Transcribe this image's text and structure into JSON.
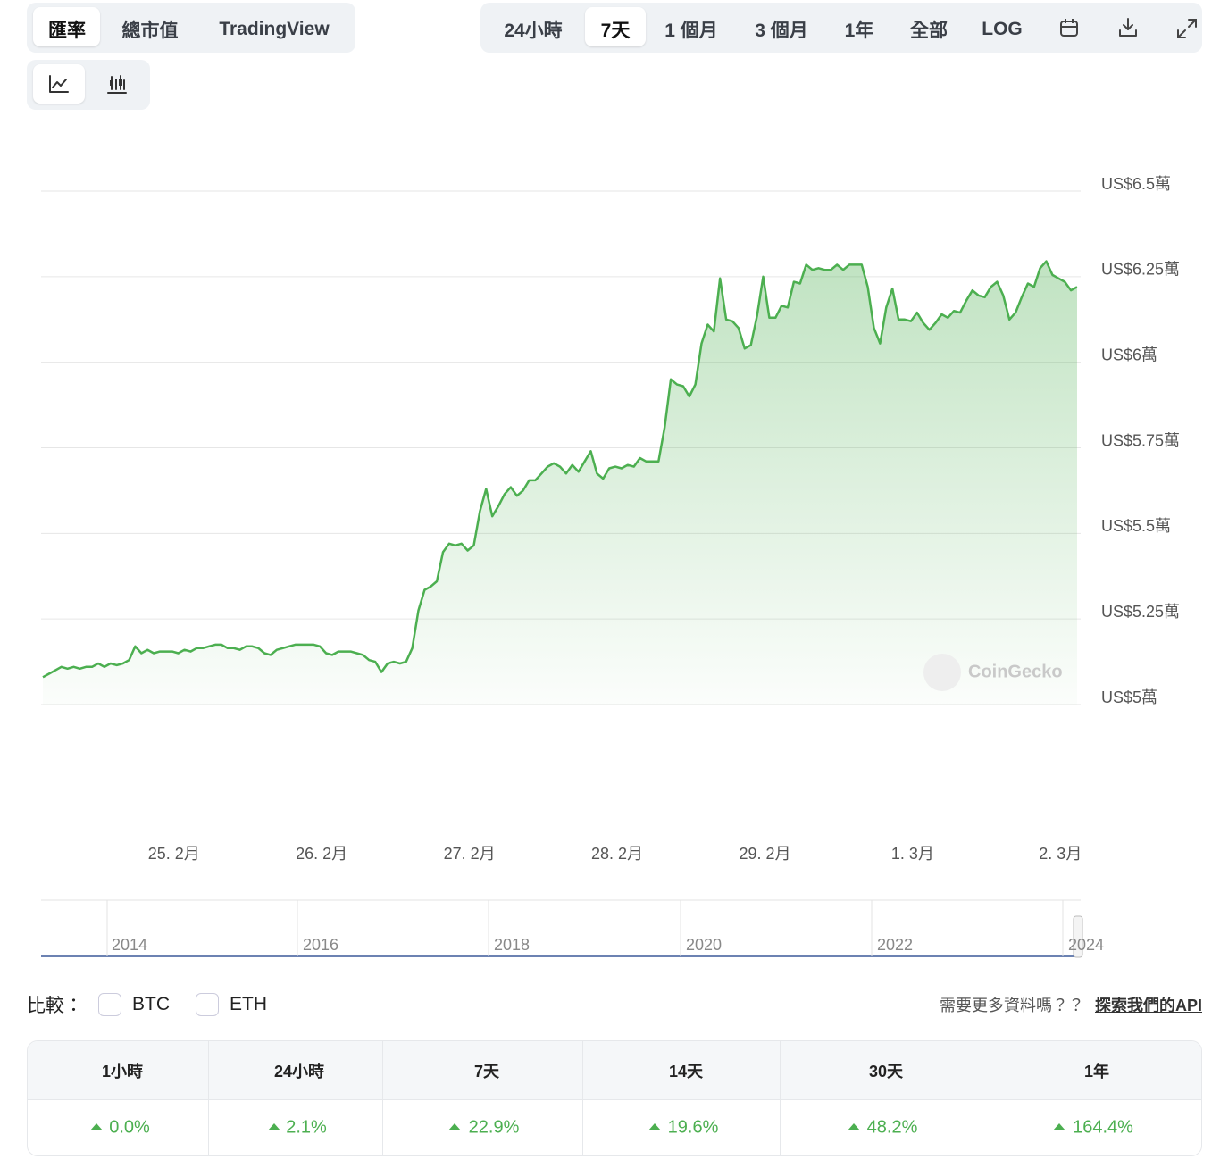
{
  "tabs": [
    "匯率",
    "總市值",
    "TradingView"
  ],
  "ranges": [
    "24小時",
    "7天",
    "1 個月",
    "3 個月",
    "1年",
    "全部",
    "LOG"
  ],
  "chart_data": {
    "type": "line",
    "watermark": "CoinGecko",
    "categories": [
      null,
      null,
      null,
      null,
      null,
      null,
      null,
      null,
      null,
      null,
      null,
      null,
      null,
      null,
      null,
      null,
      null,
      null,
      null,
      null,
      null,
      "25. 2月",
      null,
      null,
      null,
      null,
      null,
      null,
      null,
      null,
      null,
      null,
      null,
      null,
      null,
      null,
      null,
      null,
      null,
      null,
      null,
      null,
      null,
      null,
      null,
      "26. 2月",
      null,
      null,
      null,
      null,
      null,
      null,
      null,
      null,
      null,
      null,
      null,
      null,
      null,
      null,
      null,
      null,
      null,
      null,
      null,
      null,
      null,
      null,
      null,
      "27. 2月",
      null,
      null,
      null,
      null,
      null,
      null,
      null,
      null,
      null,
      null,
      null,
      null,
      null,
      null,
      null,
      null,
      null,
      null,
      null,
      null,
      null,
      null,
      null,
      "28. 2月",
      null,
      null,
      null,
      null,
      null,
      null,
      null,
      null,
      null,
      null,
      null,
      null,
      null,
      null,
      null,
      null,
      null,
      null,
      null,
      null,
      null,
      null,
      null,
      "29. 2月",
      null,
      null,
      null,
      null,
      null,
      null,
      null,
      null,
      null,
      null,
      null,
      null,
      null,
      null,
      null,
      null,
      null,
      null,
      null,
      null,
      null,
      null,
      null,
      "1. 3月",
      null,
      null,
      null,
      null,
      null,
      null,
      null,
      null,
      null,
      null,
      null,
      null,
      null,
      null,
      null,
      null,
      null,
      null,
      null,
      null,
      null,
      null,
      null,
      "2. 3月",
      null,
      null,
      null
    ],
    "series": [
      {
        "color": "#4caf50",
        "values": [
          50800,
          50900,
          51000,
          51100,
          51050,
          51100,
          51050,
          51100,
          51100,
          51200,
          51100,
          51200,
          51150,
          51200,
          51300,
          51700,
          51500,
          51600,
          51500,
          51550,
          51550,
          51550,
          51500,
          51600,
          51550,
          51650,
          51650,
          51700,
          51750,
          51750,
          51650,
          51650,
          51600,
          51700,
          51700,
          51650,
          51500,
          51450,
          51600,
          51650,
          51700,
          51750,
          51750,
          51750,
          51750,
          51700,
          51500,
          51450,
          51550,
          51550,
          51550,
          51500,
          51450,
          51300,
          51250,
          50950,
          51200,
          51250,
          51200,
          51250,
          51650,
          52750,
          53350,
          53450,
          53600,
          54450,
          54700,
          54650,
          54700,
          54500,
          54650,
          55650,
          56300,
          55500,
          55800,
          56150,
          56350,
          56100,
          56250,
          56550,
          56550,
          56750,
          56950,
          57050,
          56950,
          56750,
          57000,
          56800,
          57100,
          57400,
          56750,
          56600,
          56900,
          56950,
          56900,
          57000,
          56950,
          57200,
          57100,
          57100,
          57100,
          58100,
          59500,
          59350,
          59300,
          59000,
          59350,
          60550,
          61100,
          60900,
          62450,
          61250,
          61200,
          61000,
          60400,
          60500,
          61350,
          62500,
          61300,
          61300,
          61650,
          61600,
          62350,
          62300,
          62850,
          62700,
          62750,
          62700,
          62700,
          62850,
          62700,
          62850,
          62850,
          62850,
          62200,
          61000,
          60550,
          61600,
          62150,
          61250,
          61250,
          61200,
          61450,
          61150,
          60950,
          61150,
          61400,
          61300,
          61500,
          61450,
          61800,
          62100,
          61950,
          61900,
          62200,
          62350,
          61950,
          61250,
          61450,
          61900,
          62300,
          62200,
          62750,
          62950,
          62550,
          62450,
          62350,
          62100,
          62200
        ]
      }
    ],
    "ylim": [
      50000,
      65000
    ],
    "yticks": [
      {
        "value": 50000,
        "label": "US$5萬"
      },
      {
        "value": 52500,
        "label": "US$5.25萬"
      },
      {
        "value": 55000,
        "label": "US$5.5萬"
      },
      {
        "value": 57500,
        "label": "US$5.75萬"
      },
      {
        "value": 60000,
        "label": "US$6萬"
      },
      {
        "value": 62500,
        "label": "US$6.25萬"
      },
      {
        "value": 65000,
        "label": "US$6.5萬"
      }
    ],
    "grid": true
  },
  "navigator": [
    "2014",
    "2016",
    "2018",
    "2020",
    "2022",
    "2024"
  ],
  "compare": {
    "label": "比較：",
    "options": [
      "BTC",
      "ETH"
    ],
    "prompt": "需要更多資料嗎？？",
    "link": "探索我們的API"
  },
  "changes": {
    "headers": [
      "1小時",
      "24小時",
      "7天",
      "14天",
      "30天",
      "1年"
    ],
    "values": [
      "0.0%",
      "2.1%",
      "22.9%",
      "19.6%",
      "48.2%",
      "164.4%"
    ]
  }
}
